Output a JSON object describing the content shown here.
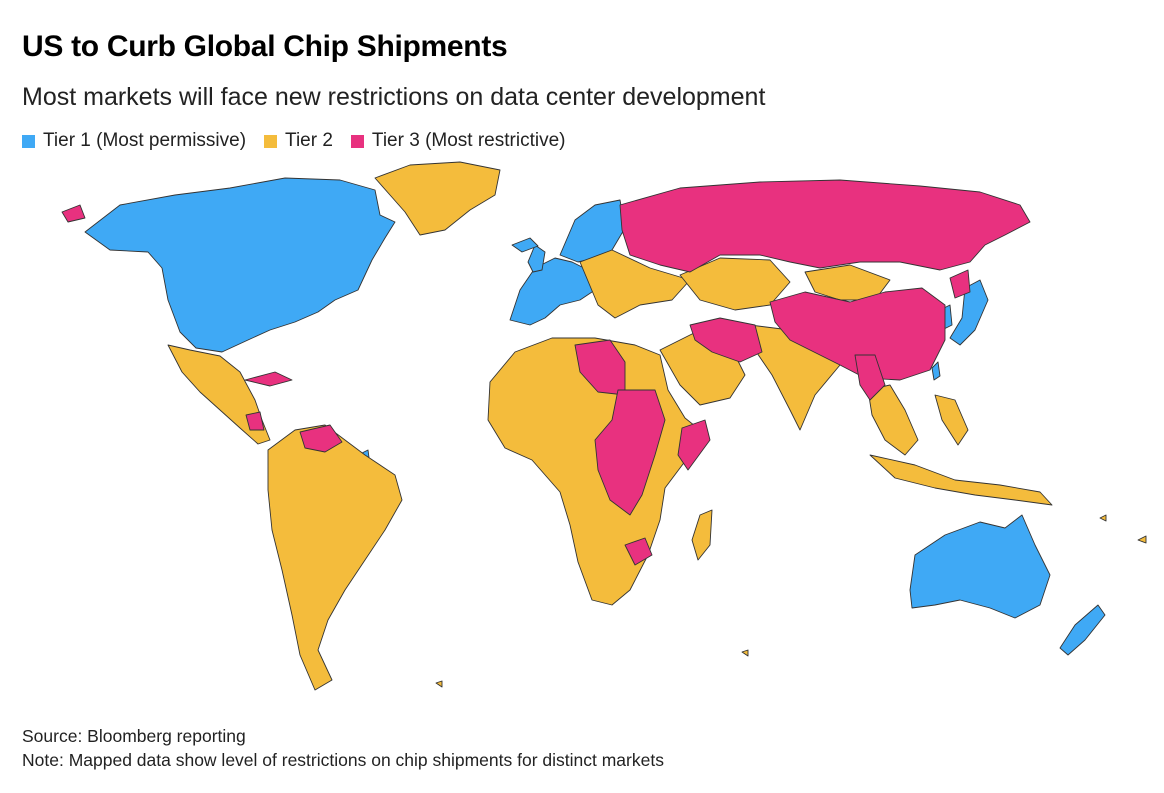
{
  "header": {
    "title": "US to Curb Global Chip Shipments",
    "subtitle": "Most markets will face new restrictions on data center development"
  },
  "legend": [
    {
      "label": "Tier 1 (Most permissive)",
      "color": "#3fa9f5"
    },
    {
      "label": "Tier 2",
      "color": "#f4bc3c"
    },
    {
      "label": "Tier 3 (Most restrictive)",
      "color": "#e8317f"
    }
  ],
  "colors": {
    "tier1": "#3fa9f5",
    "tier2": "#f4bc3c",
    "tier3": "#e8317f",
    "border": "#333333"
  },
  "footer": {
    "source": "Source: Bloomberg reporting",
    "note": "Note: Mapped data show level of restrictions on chip shipments for distinct markets"
  }
}
